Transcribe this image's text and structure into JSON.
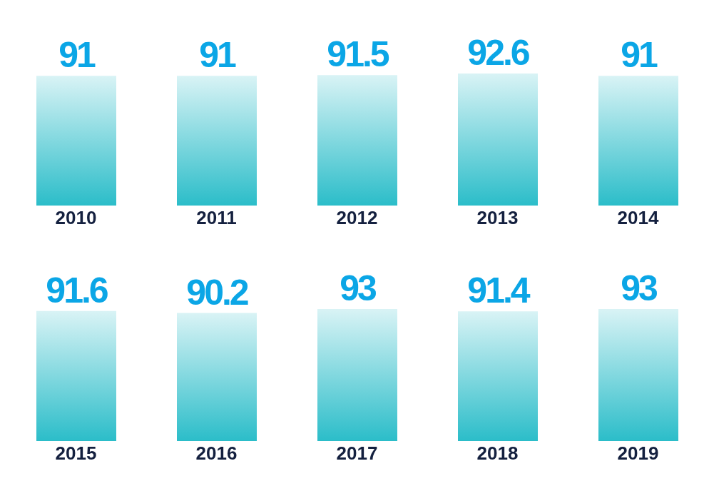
{
  "chart_data": [
    {
      "type": "bar",
      "categories": [
        "2010",
        "2011",
        "2012",
        "2013",
        "2014"
      ],
      "values": [
        91,
        91,
        91.5,
        92.6,
        91
      ],
      "color": "#2bbdc9",
      "data_labels": true
    },
    {
      "type": "bar",
      "categories": [
        "2015",
        "2016",
        "2017",
        "2018",
        "2019"
      ],
      "values": [
        91.6,
        90.2,
        93,
        91.4,
        93
      ],
      "color": "#2bbdc9",
      "data_labels": true
    }
  ]
}
